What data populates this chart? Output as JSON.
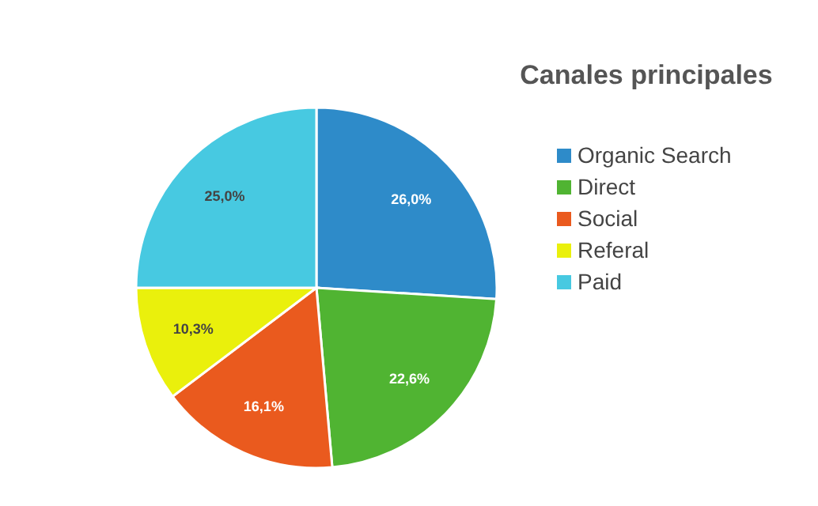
{
  "chart_data": {
    "type": "pie",
    "title": "Canales principales",
    "categories": [
      "Organic Search",
      "Direct",
      "Social",
      "Referal",
      "Paid"
    ],
    "values": [
      26.0,
      22.6,
      16.1,
      10.3,
      25.0
    ],
    "value_labels": [
      "26,0%",
      "22,6%",
      "16,1%",
      "10,3%",
      "25,0%"
    ],
    "colors": [
      "#2e8bc9",
      "#50b432",
      "#ea5a1e",
      "#eaf00c",
      "#47c9e1"
    ],
    "legend": "right"
  }
}
